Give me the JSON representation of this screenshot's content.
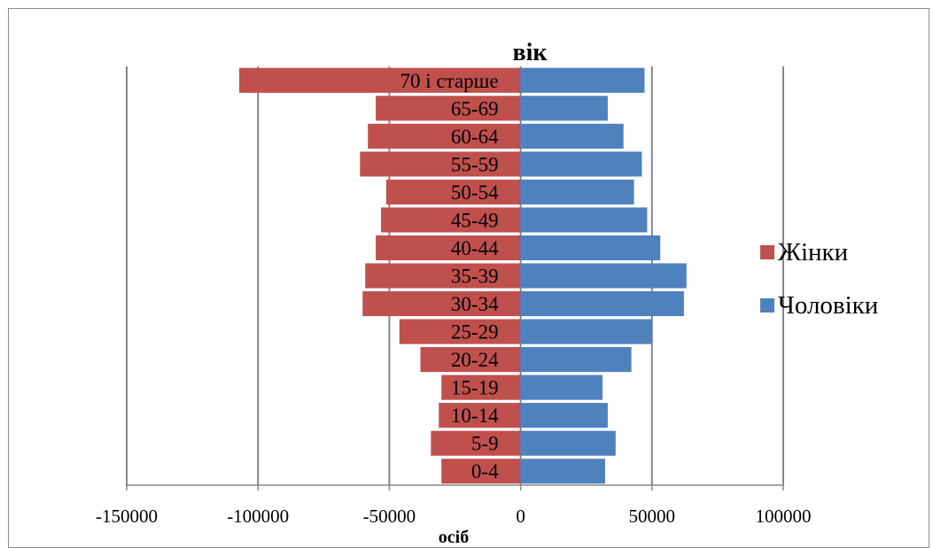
{
  "chart_data": {
    "type": "bar",
    "orientation": "horizontal",
    "title": "вік",
    "xlabel": "осіб",
    "ylabel": "",
    "xlim": [
      -150000,
      100000
    ],
    "x_ticks": [
      -150000,
      -100000,
      -50000,
      0,
      50000,
      100000
    ],
    "x_tick_labels": [
      "-150000",
      "-100000",
      "-50000",
      "0",
      "50000",
      "100000"
    ],
    "grid": true,
    "legend_position": "right",
    "categories": [
      "0-4",
      "5-9",
      "10-14",
      "15-19",
      "20-24",
      "25-29",
      "30-34",
      "35-39",
      "40-44",
      "45-49",
      "50-54",
      "55-59",
      "60-64",
      "65-69",
      "70 і старше"
    ],
    "series": [
      {
        "name": "Жінки",
        "color": "#c0504d",
        "values": [
          -30000,
          -34000,
          -31000,
          -30000,
          -38000,
          -46000,
          -60000,
          -59000,
          -55000,
          -53000,
          -51000,
          -61000,
          -58000,
          -55000,
          -107000
        ]
      },
      {
        "name": "Чоловіки",
        "color": "#4f81bd",
        "values": [
          32000,
          36000,
          33000,
          31000,
          42000,
          50000,
          62000,
          63000,
          53000,
          48000,
          43000,
          46000,
          39000,
          33000,
          47000
        ]
      }
    ]
  }
}
